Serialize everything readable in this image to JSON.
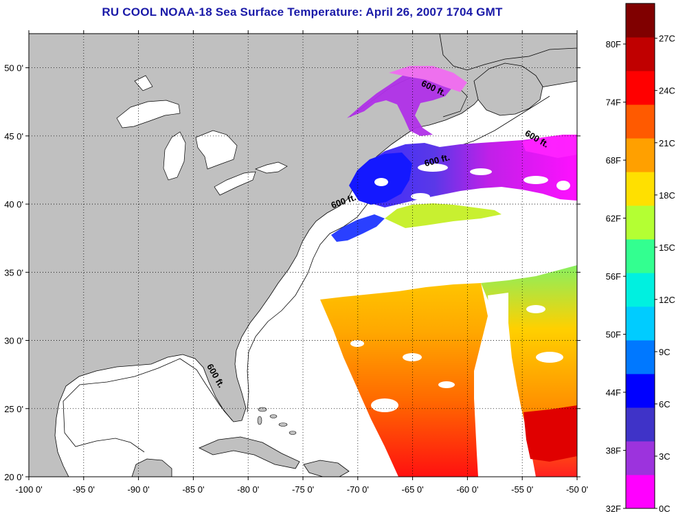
{
  "title": "RU COOL  NOAA-18  Sea Surface Temperature:  April 26, 2007 1704 GMT",
  "map": {
    "lon_range": [
      -100,
      -50
    ],
    "lat_range": [
      20,
      52.5
    ],
    "lon_ticks": [
      {
        "value": -100,
        "label": "-100 0'"
      },
      {
        "value": -95,
        "label": "-95 0'"
      },
      {
        "value": -90,
        "label": "-90 0'"
      },
      {
        "value": -85,
        "label": "-85 0'"
      },
      {
        "value": -80,
        "label": "-80 0'"
      },
      {
        "value": -75,
        "label": "-75 0'"
      },
      {
        "value": -70,
        "label": "-70 0'"
      },
      {
        "value": -65,
        "label": "-65 0'"
      },
      {
        "value": -60,
        "label": "-60 0'"
      },
      {
        "value": -55,
        "label": "-55 0'"
      },
      {
        "value": -50,
        "label": "-50 0'"
      }
    ],
    "lat_ticks": [
      {
        "value": 20,
        "label": "20 0'"
      },
      {
        "value": 25,
        "label": "25 0'"
      },
      {
        "value": 30,
        "label": "30 0'"
      },
      {
        "value": 35,
        "label": "35 0'"
      },
      {
        "value": 40,
        "label": "40 0'"
      },
      {
        "value": 45,
        "label": "45 0'"
      },
      {
        "value": 50,
        "label": "50 0'"
      }
    ],
    "grid": "dotted",
    "land_color": "#c0c0c0",
    "isobath_labels": [
      {
        "text": "600 ft.",
        "lon": -63.2,
        "lat": 48.3,
        "rotate": 25
      },
      {
        "text": "600 ft.",
        "lon": -53.8,
        "lat": 44.6,
        "rotate": 30
      },
      {
        "text": "600 ft.",
        "lon": -62.7,
        "lat": 43.0,
        "rotate": -15
      },
      {
        "text": "600 ft.",
        "lon": -71.2,
        "lat": 40.0,
        "rotate": -20
      },
      {
        "text": "600 ft.",
        "lon": -83.2,
        "lat": 27.3,
        "rotate": 60
      }
    ]
  },
  "colorbar": {
    "range_c": [
      0,
      29
    ],
    "colors": [
      "#ff00ff",
      "#9c33dd",
      "#3f33c8",
      "#0000ff",
      "#0078ff",
      "#00ccff",
      "#00f0e0",
      "#33ff90",
      "#b4ff33",
      "#ffe000",
      "#ffa000",
      "#ff5a00",
      "#ff0000",
      "#c00000",
      "#800000"
    ],
    "fahrenheit_labels": [
      {
        "value_c": 0,
        "label": "32F"
      },
      {
        "value_c": 3.33,
        "label": "38F"
      },
      {
        "value_c": 6.67,
        "label": "44F"
      },
      {
        "value_c": 10,
        "label": "50F"
      },
      {
        "value_c": 13.33,
        "label": "56F"
      },
      {
        "value_c": 16.67,
        "label": "62F"
      },
      {
        "value_c": 20,
        "label": "68F"
      },
      {
        "value_c": 23.33,
        "label": "74F"
      },
      {
        "value_c": 26.67,
        "label": "80F"
      }
    ],
    "celsius_labels": [
      {
        "value_c": 0,
        "label": "0C"
      },
      {
        "value_c": 3,
        "label": "3C"
      },
      {
        "value_c": 6,
        "label": "6C"
      },
      {
        "value_c": 9,
        "label": "9C"
      },
      {
        "value_c": 12,
        "label": "12C"
      },
      {
        "value_c": 15,
        "label": "15C"
      },
      {
        "value_c": 18,
        "label": "18C"
      },
      {
        "value_c": 21,
        "label": "21C"
      },
      {
        "value_c": 24,
        "label": "24C"
      },
      {
        "value_c": 27,
        "label": "27C"
      }
    ]
  }
}
